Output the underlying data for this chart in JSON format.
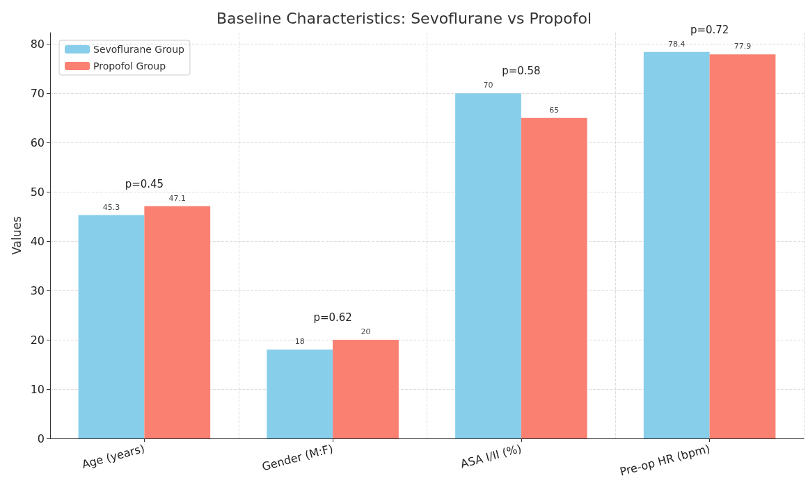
{
  "chart_data": {
    "type": "bar",
    "title": "Baseline Characteristics: Sevoflurane vs Propofol",
    "ylabel": "Values",
    "categories": [
      "Age (years)",
      "Gender (M:F)",
      "ASA I/II (%)",
      "Pre-op HR (bpm)"
    ],
    "series": [
      {
        "name": "Sevoflurane Group",
        "color": "#87ceeb",
        "values": [
          45.3,
          18,
          70,
          78.4
        ]
      },
      {
        "name": "Propofol Group",
        "color": "#fa8072",
        "values": [
          47.1,
          20,
          65,
          77.9
        ]
      }
    ],
    "ylim": [
      0,
      82.3
    ],
    "yticks": [
      0,
      10,
      20,
      30,
      40,
      50,
      60,
      70,
      80
    ],
    "annotations": [
      "p=0.45",
      "p=0.62",
      "p=0.58",
      "p=0.72"
    ],
    "data_labels": true,
    "grid": true,
    "legend": "top left"
  }
}
